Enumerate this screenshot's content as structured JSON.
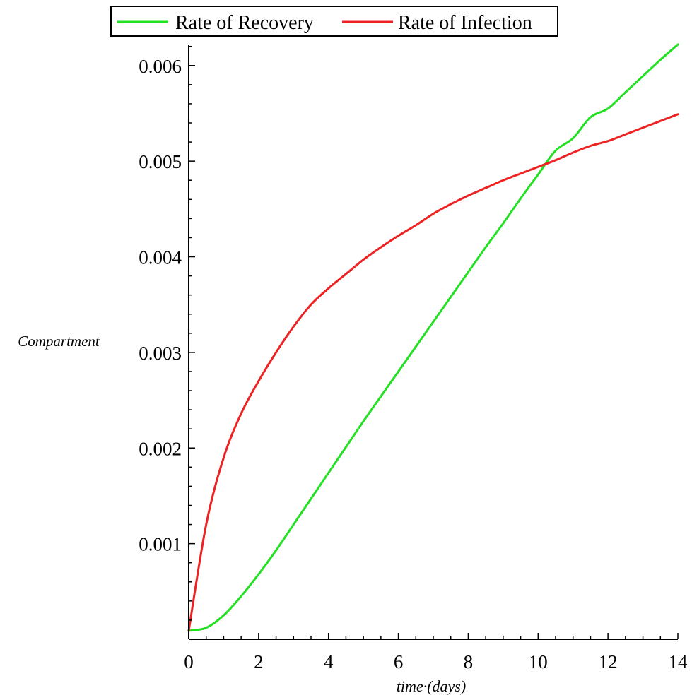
{
  "chart_data": {
    "type": "line",
    "title": "",
    "xlabel": "time·(days)",
    "ylabel": "Compartment",
    "xlim": [
      0,
      14
    ],
    "ylim": [
      0,
      0.00622
    ],
    "grid": false,
    "legend_position": "top-center",
    "x_ticks": [
      {
        "value": 0,
        "label": "0"
      },
      {
        "value": 2,
        "label": "2"
      },
      {
        "value": 4,
        "label": "4"
      },
      {
        "value": 6,
        "label": "6"
      },
      {
        "value": 8,
        "label": "8"
      },
      {
        "value": 10,
        "label": "10"
      },
      {
        "value": 12,
        "label": "12"
      },
      {
        "value": 14,
        "label": "14"
      }
    ],
    "y_ticks": [
      {
        "value": 0.001,
        "label": "0.001"
      },
      {
        "value": 0.002,
        "label": "0.002"
      },
      {
        "value": 0.003,
        "label": "0.003"
      },
      {
        "value": 0.004,
        "label": "0.004"
      },
      {
        "value": 0.005,
        "label": "0.005"
      },
      {
        "value": 0.006,
        "label": "0.006"
      }
    ],
    "x": [
      0,
      0.5,
      1,
      1.5,
      2,
      2.5,
      3,
      3.5,
      4,
      4.5,
      5,
      5.5,
      6,
      6.5,
      7,
      7.5,
      8,
      8.5,
      9,
      9.5,
      10,
      10.5,
      11,
      11.5,
      12,
      12.5,
      13,
      13.5,
      14
    ],
    "series": [
      {
        "name": "Rate of Recovery",
        "color": "#22e022",
        "values": [
          9e-05,
          0.00012,
          0.00025,
          0.00045,
          0.00068,
          0.00093,
          0.0012,
          0.00147,
          0.00174,
          0.00201,
          0.00228,
          0.00254,
          0.0028,
          0.00306,
          0.00332,
          0.00358,
          0.00384,
          0.0041,
          0.00435,
          0.00461,
          0.00486,
          0.00511,
          0.00524,
          0.00546,
          0.00555,
          0.00572,
          0.00589,
          0.00606,
          0.00622
        ]
      },
      {
        "name": "Rate of Infection",
        "color": "#ee2222",
        "values": [
          9e-05,
          0.0012,
          0.0019,
          0.00236,
          0.0027,
          0.003,
          0.00327,
          0.0035,
          0.00367,
          0.00382,
          0.00397,
          0.0041,
          0.00422,
          0.00433,
          0.00445,
          0.00455,
          0.00464,
          0.00472,
          0.0048,
          0.00487,
          0.00494,
          0.00501,
          0.00509,
          0.00516,
          0.00521,
          0.00528,
          0.00535,
          0.00542,
          0.00549
        ]
      }
    ]
  }
}
